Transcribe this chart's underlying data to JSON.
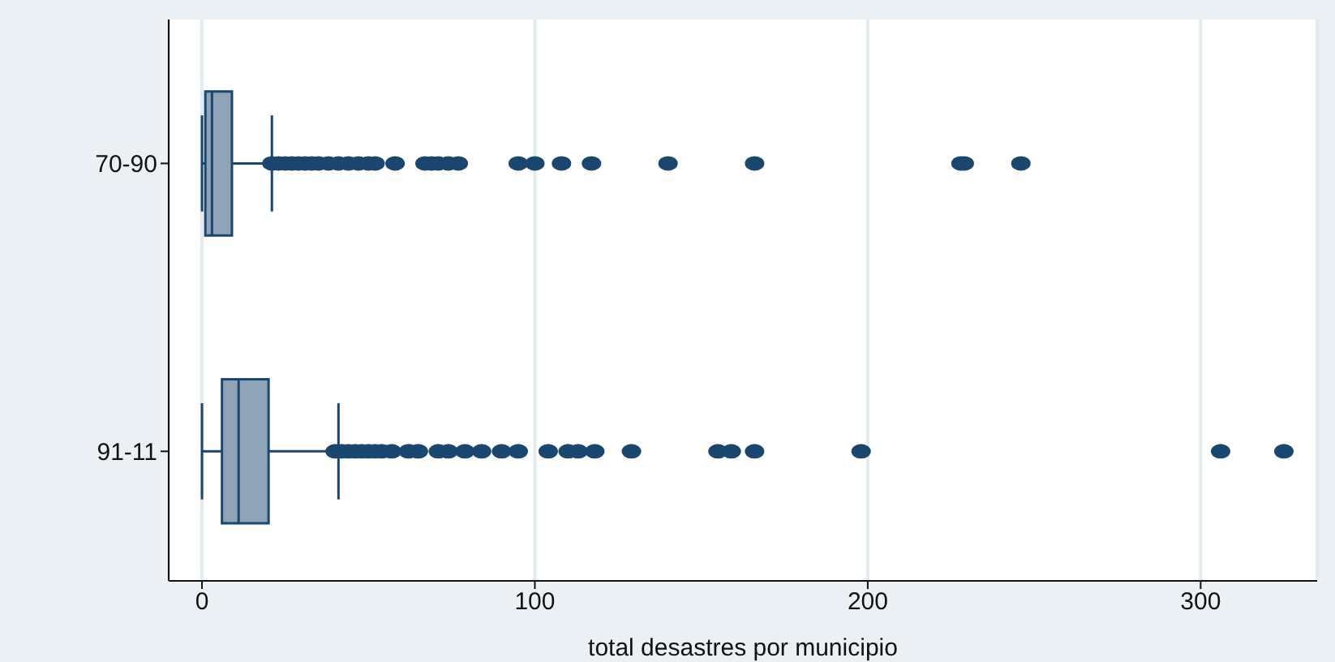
{
  "chart_data": {
    "type": "box",
    "orientation": "horizontal",
    "categories": [
      "70-90",
      "91-11"
    ],
    "boxes": [
      {
        "low": 0,
        "q1": 1,
        "median": 3,
        "q3": 9,
        "high": 21,
        "outliers": [
          21,
          23,
          25,
          27,
          29,
          31,
          33,
          35,
          38,
          41,
          44,
          47,
          50,
          52,
          58,
          67,
          69,
          71,
          74,
          77,
          95,
          100,
          108,
          117,
          140,
          166,
          228,
          229,
          246
        ]
      },
      {
        "low": 0,
        "q1": 6,
        "median": 11,
        "q3": 20,
        "high": 41,
        "outliers": [
          40,
          42,
          44,
          46,
          48,
          50,
          52,
          54,
          57,
          62,
          65,
          71,
          74,
          79,
          84,
          90,
          95,
          104,
          110,
          113,
          118,
          129,
          155,
          159,
          166,
          198,
          306,
          325
        ]
      }
    ],
    "color": "#1a476f",
    "colors": [
      "#8ea3b8",
      "#8ea3b8"
    ],
    "marker": "circle",
    "xlabel": "total desastres por municipio",
    "xlim": [
      -10,
      335
    ],
    "xticks": [
      0,
      100,
      200,
      300
    ],
    "grid": "x"
  }
}
